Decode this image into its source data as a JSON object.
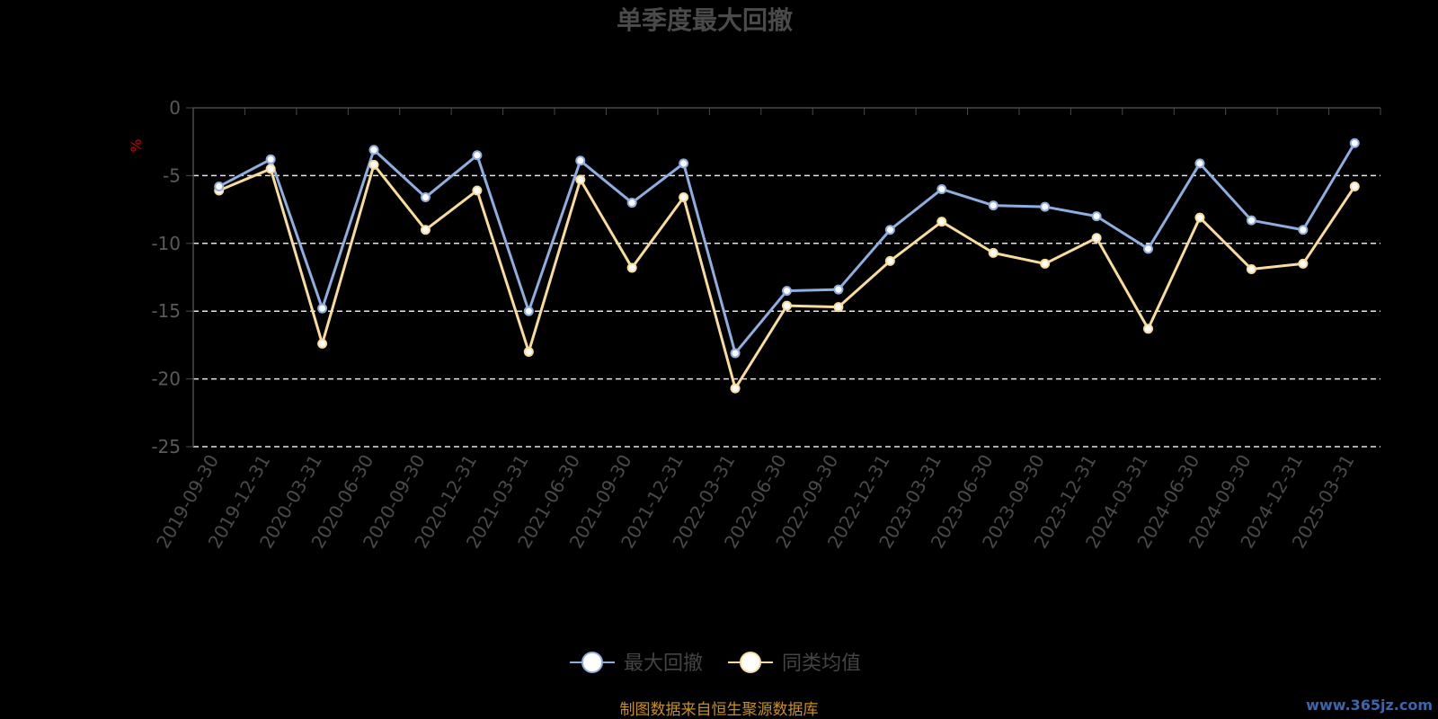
{
  "chart_data": {
    "type": "line",
    "title": "单季度最大回撤",
    "ylabel": "%",
    "ylim": [
      -25,
      0
    ],
    "yticks": [
      "0",
      "-5",
      "-10",
      "-15",
      "-20",
      "-25"
    ],
    "categories": [
      "2019-09-30",
      "2019-12-31",
      "2020-03-31",
      "2020-06-30",
      "2020-09-30",
      "2020-12-31",
      "2021-03-31",
      "2021-06-30",
      "2021-09-30",
      "2021-12-31",
      "2022-03-31",
      "2022-06-30",
      "2022-09-30",
      "2022-12-31",
      "2023-03-31",
      "2023-06-30",
      "2023-09-30",
      "2023-12-31",
      "2024-03-31",
      "2024-06-30",
      "2024-09-30",
      "2024-12-31",
      "2025-03-31"
    ],
    "series": [
      {
        "name": "最大回撤",
        "color": "#8eaedf",
        "values": [
          -5.8,
          -3.8,
          -14.8,
          -3.1,
          -6.6,
          -3.5,
          -15.0,
          -3.9,
          -7.0,
          -4.1,
          -18.1,
          -13.5,
          -13.4,
          -9.0,
          -6.0,
          -7.2,
          -7.3,
          -8.0,
          -10.4,
          -4.1,
          -8.3,
          -9.0,
          -2.6
        ]
      },
      {
        "name": "同类均值",
        "color": "#f9dc9a",
        "values": [
          -6.1,
          -4.5,
          -17.4,
          -4.2,
          -9.0,
          -6.1,
          -18.0,
          -5.3,
          -11.8,
          -6.6,
          -20.7,
          -14.6,
          -14.7,
          -11.3,
          -8.4,
          -10.7,
          -11.5,
          -9.6,
          -16.3,
          -8.1,
          -11.9,
          -11.5,
          -5.8
        ]
      }
    ],
    "grid": "dashed-horizontal",
    "legend_position": "bottom-center"
  },
  "source_note": "制图数据来自恒生聚源数据库",
  "watermark": "www.365jz.com"
}
